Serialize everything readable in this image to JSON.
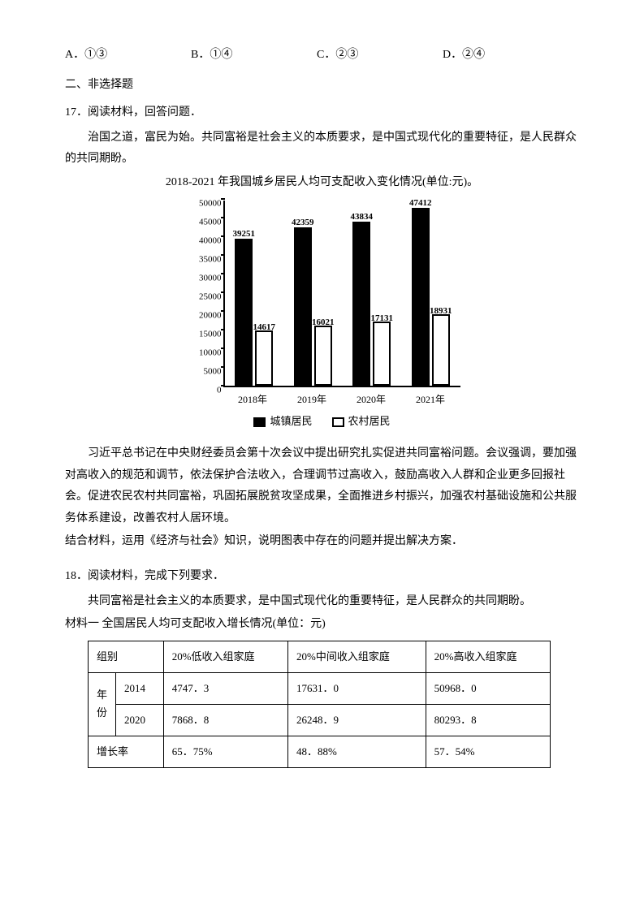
{
  "options": {
    "a": "A．①③",
    "b": "B．①④",
    "c": "C．②③",
    "d": "D．②④"
  },
  "section2": "二、非选择题",
  "q17": {
    "head": "17．阅读材料，回答问题．",
    "p1": "治国之道，富民为始。共同富裕是社会主义的本质要求，是中国式现代化的重要特征，是人民群众的共同期盼。",
    "p2": "2018-2021 年我国城乡居民人均可支配收入变化情况(单位:元)。",
    "p3": "习近平总书记在中央财经委员会第十次会议中提出研究扎实促进共同富裕问题。会议强调，要加强对高收入的规范和调节，依法保护合法收入，合理调节过高收入，鼓励高收入人群和企业更多回报社会。促进农民农村共同富裕，巩固拓展脱贫攻坚成果，全面推进乡村振兴，加强农村基础设施和公共服务体系建设，改善农村人居环境。",
    "p4": "结合材料，运用《经济与社会》知识，说明图表中存在的问题并提出解决方案．"
  },
  "chart": {
    "type": "bar",
    "ylim": [
      0,
      50000
    ],
    "ytick_step": 5000,
    "yticks": [
      "0",
      "5000",
      "10000",
      "15000",
      "20000",
      "25000",
      "30000",
      "35000",
      "40000",
      "45000",
      "50000"
    ],
    "categories": [
      "2018年",
      "2019年",
      "2020年",
      "2021年"
    ],
    "urban": [
      39251,
      42359,
      43834,
      47412
    ],
    "rural": [
      14617,
      16021,
      17131,
      18931
    ],
    "legend_urban": "城镇居民",
    "legend_rural": "农村居民",
    "bar_colors": {
      "urban": "#000000",
      "rural_border": "#000000",
      "rural_fill": "#ffffff"
    },
    "background_color": "#ffffff"
  },
  "q18": {
    "head": "18．阅读材料，完成下列要求．",
    "p1": "共同富裕是社会主义的本质要求，是中国式现代化的重要特征，是人民群众的共同期盼。",
    "tabletitle": "材料一  全国居民人均可支配收入增长情况(单位：元)"
  },
  "table": {
    "cols": [
      "组别",
      "20%低收入组家庭",
      "20%中间收入组家庭",
      "20%高收入组家庭"
    ],
    "yearhead": "年份",
    "rows": [
      {
        "year": "2014",
        "low": "4747．3",
        "mid": "17631．0",
        "high": "50968．0"
      },
      {
        "year": "2020",
        "low": "7868．8",
        "mid": "26248．9",
        "high": "80293．8"
      }
    ],
    "growth_label": "增长率",
    "growth": {
      "low": "65．75%",
      "mid": "48．88%",
      "high": "57．54%"
    }
  }
}
